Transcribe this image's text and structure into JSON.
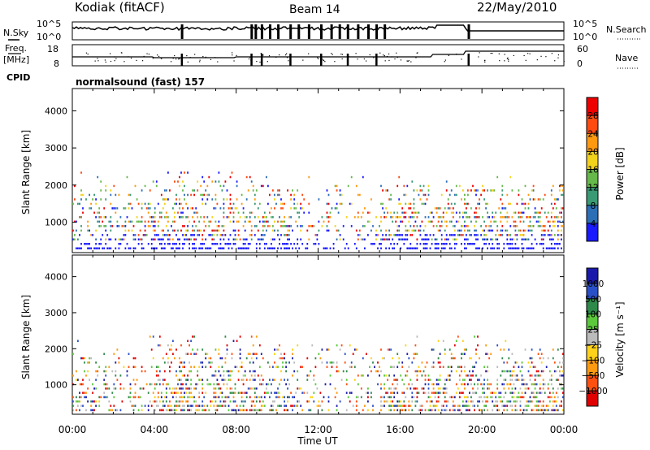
{
  "header": {
    "station": "Kodiak (fitACF)",
    "beam": "Beam 14",
    "date": "22/May/2010"
  },
  "noise_panel": {
    "left_label": "N.Sky",
    "right_label": "N.Search",
    "left_ticks": [
      "10^5",
      "10^0"
    ],
    "right_ticks": [
      "10^5",
      "10^0"
    ]
  },
  "freq_panel": {
    "left_label_line1": "Freq.",
    "left_label_line2": "[MHz]",
    "right_label": "Nave",
    "left_ticks": [
      "18",
      "8"
    ],
    "right_ticks": [
      "60",
      "0"
    ]
  },
  "cpid": {
    "label": "CPID",
    "mode": "normalsound (fast) 157"
  },
  "x_axis": {
    "label": "Time UT",
    "ticks": [
      "00:00",
      "04:00",
      "08:00",
      "12:00",
      "16:00",
      "20:00",
      "00:00"
    ]
  },
  "chart_data": [
    {
      "type": "heatmap",
      "name": "power",
      "ylabel": "Slant Range [km]",
      "ylim": [
        180,
        4600
      ],
      "yticks": [
        1000,
        2000,
        3000,
        4000
      ],
      "xlim_hours": [
        0,
        24
      ],
      "colorbar": {
        "label": "Power [dB]",
        "ticks": [
          "4",
          "8",
          "12",
          "16",
          "20",
          "24",
          "28"
        ],
        "colors": [
          "#1a1aff",
          "#2d6fb6",
          "#3a9a74",
          "#66b84a",
          "#f2d21a",
          "#ff9a10",
          "#ff4a10",
          "#ee0000"
        ]
      },
      "scatter_bands_km": [
        300,
        420,
        540,
        660,
        780,
        900,
        1020,
        1140,
        1260,
        1380,
        1500,
        1620,
        1740,
        1860,
        1980,
        2100,
        2220,
        2340
      ]
    },
    {
      "type": "heatmap",
      "name": "velocity",
      "ylabel": "Slant Range [km]",
      "ylim": [
        180,
        4600
      ],
      "yticks": [
        1000,
        2000,
        3000,
        4000
      ],
      "xlim_hours": [
        0,
        24
      ],
      "colorbar": {
        "label": "Velocity [m s⁻¹]",
        "ticks": [
          "1000",
          "500",
          "100",
          "25",
          "−25",
          "−100",
          "−500",
          "−1000"
        ],
        "colors": [
          "#1a1aaa",
          "#2a50c8",
          "#2f8a4a",
          "#5cc83c",
          "#bbbbbb",
          "#ffd21a",
          "#ff9a10",
          "#ff5010",
          "#e00000"
        ]
      },
      "scatter_bands_km": [
        300,
        420,
        540,
        660,
        780,
        900,
        1020,
        1140,
        1260,
        1380,
        1500,
        1620,
        1740,
        1860,
        1980,
        2100,
        2220,
        2340
      ]
    }
  ]
}
